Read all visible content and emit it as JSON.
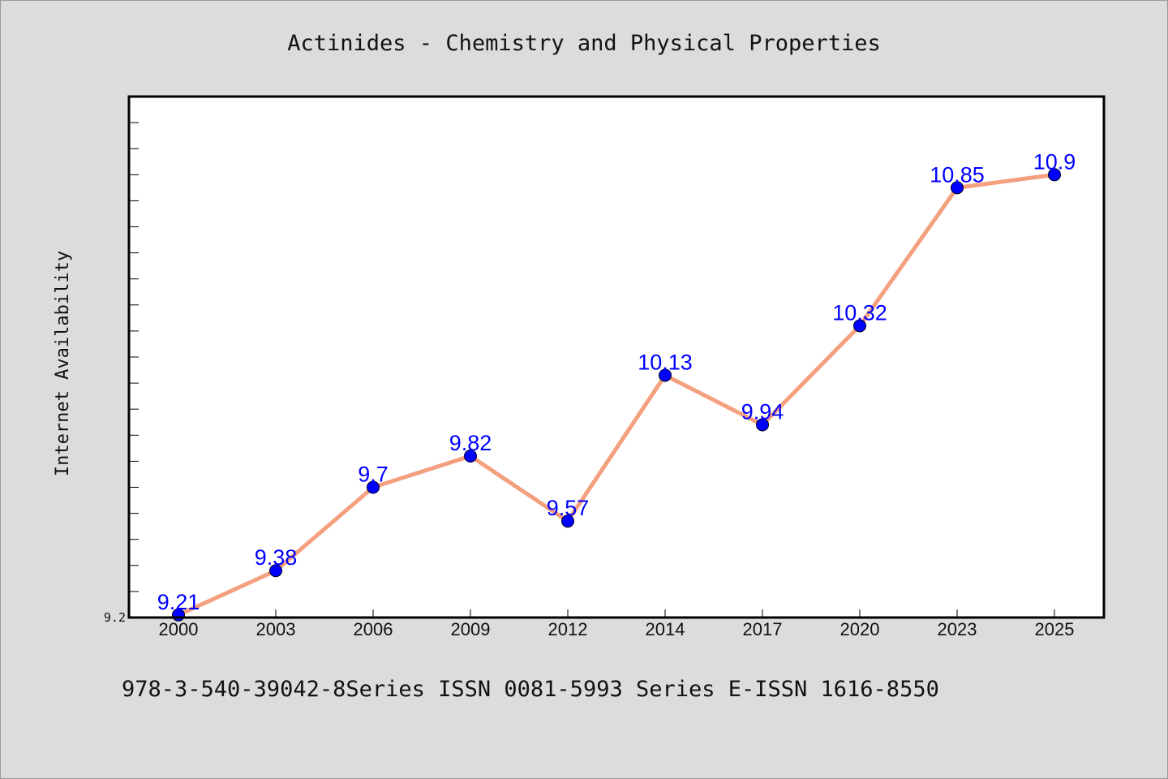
{
  "chart_data": {
    "type": "line",
    "title": "Actinides - Chemistry and Physical Properties",
    "xlabel": "",
    "ylabel": "Internet Availability",
    "categories": [
      "2000",
      "2003",
      "2006",
      "2009",
      "2012",
      "2014",
      "2017",
      "2020",
      "2023",
      "2025"
    ],
    "series": [
      {
        "values": [
          9.21,
          9.38,
          9.7,
          9.82,
          9.57,
          10.13,
          9.94,
          10.32,
          10.85,
          10.9
        ]
      }
    ],
    "data_labels": [
      "9.21",
      "9.38",
      "9.7",
      "9.82",
      "9.57",
      "10.13",
      "9.94",
      "10.32",
      "10.85",
      "10.9"
    ],
    "y_tick_labels": [
      {
        "value": 9.2,
        "label": "9.2"
      }
    ],
    "ylim": [
      9.2,
      11.2
    ],
    "y_minor_tick_step": 0.1,
    "grid": false,
    "legend": "none",
    "line_color": "#f4a07f",
    "marker_color": "#0000ff",
    "label_color": "#0000ff"
  },
  "footer": "978-3-540-39042-8Series ISSN 0081-5993 Series E-ISSN 1616-8550"
}
